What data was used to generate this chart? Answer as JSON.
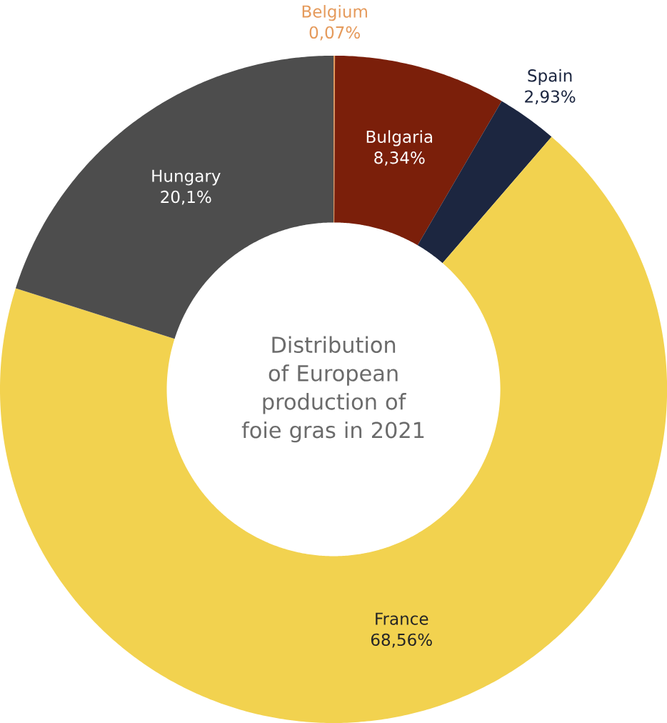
{
  "chart_data": {
    "type": "donut",
    "title": "Distribution of European production of foie gras in 2021",
    "categories": [
      "Belgium",
      "Bulgaria",
      "Spain",
      "France",
      "Hungary"
    ],
    "values": [
      0.07,
      8.34,
      2.93,
      68.56,
      20.1
    ],
    "value_labels": [
      "0,07%",
      "8,34%",
      "2,93%",
      "68,56%",
      "20,1%"
    ],
    "colors": [
      "#e59a5b",
      "#7b1f0a",
      "#1c2640",
      "#f2d24f",
      "#4d4d4d"
    ]
  }
}
